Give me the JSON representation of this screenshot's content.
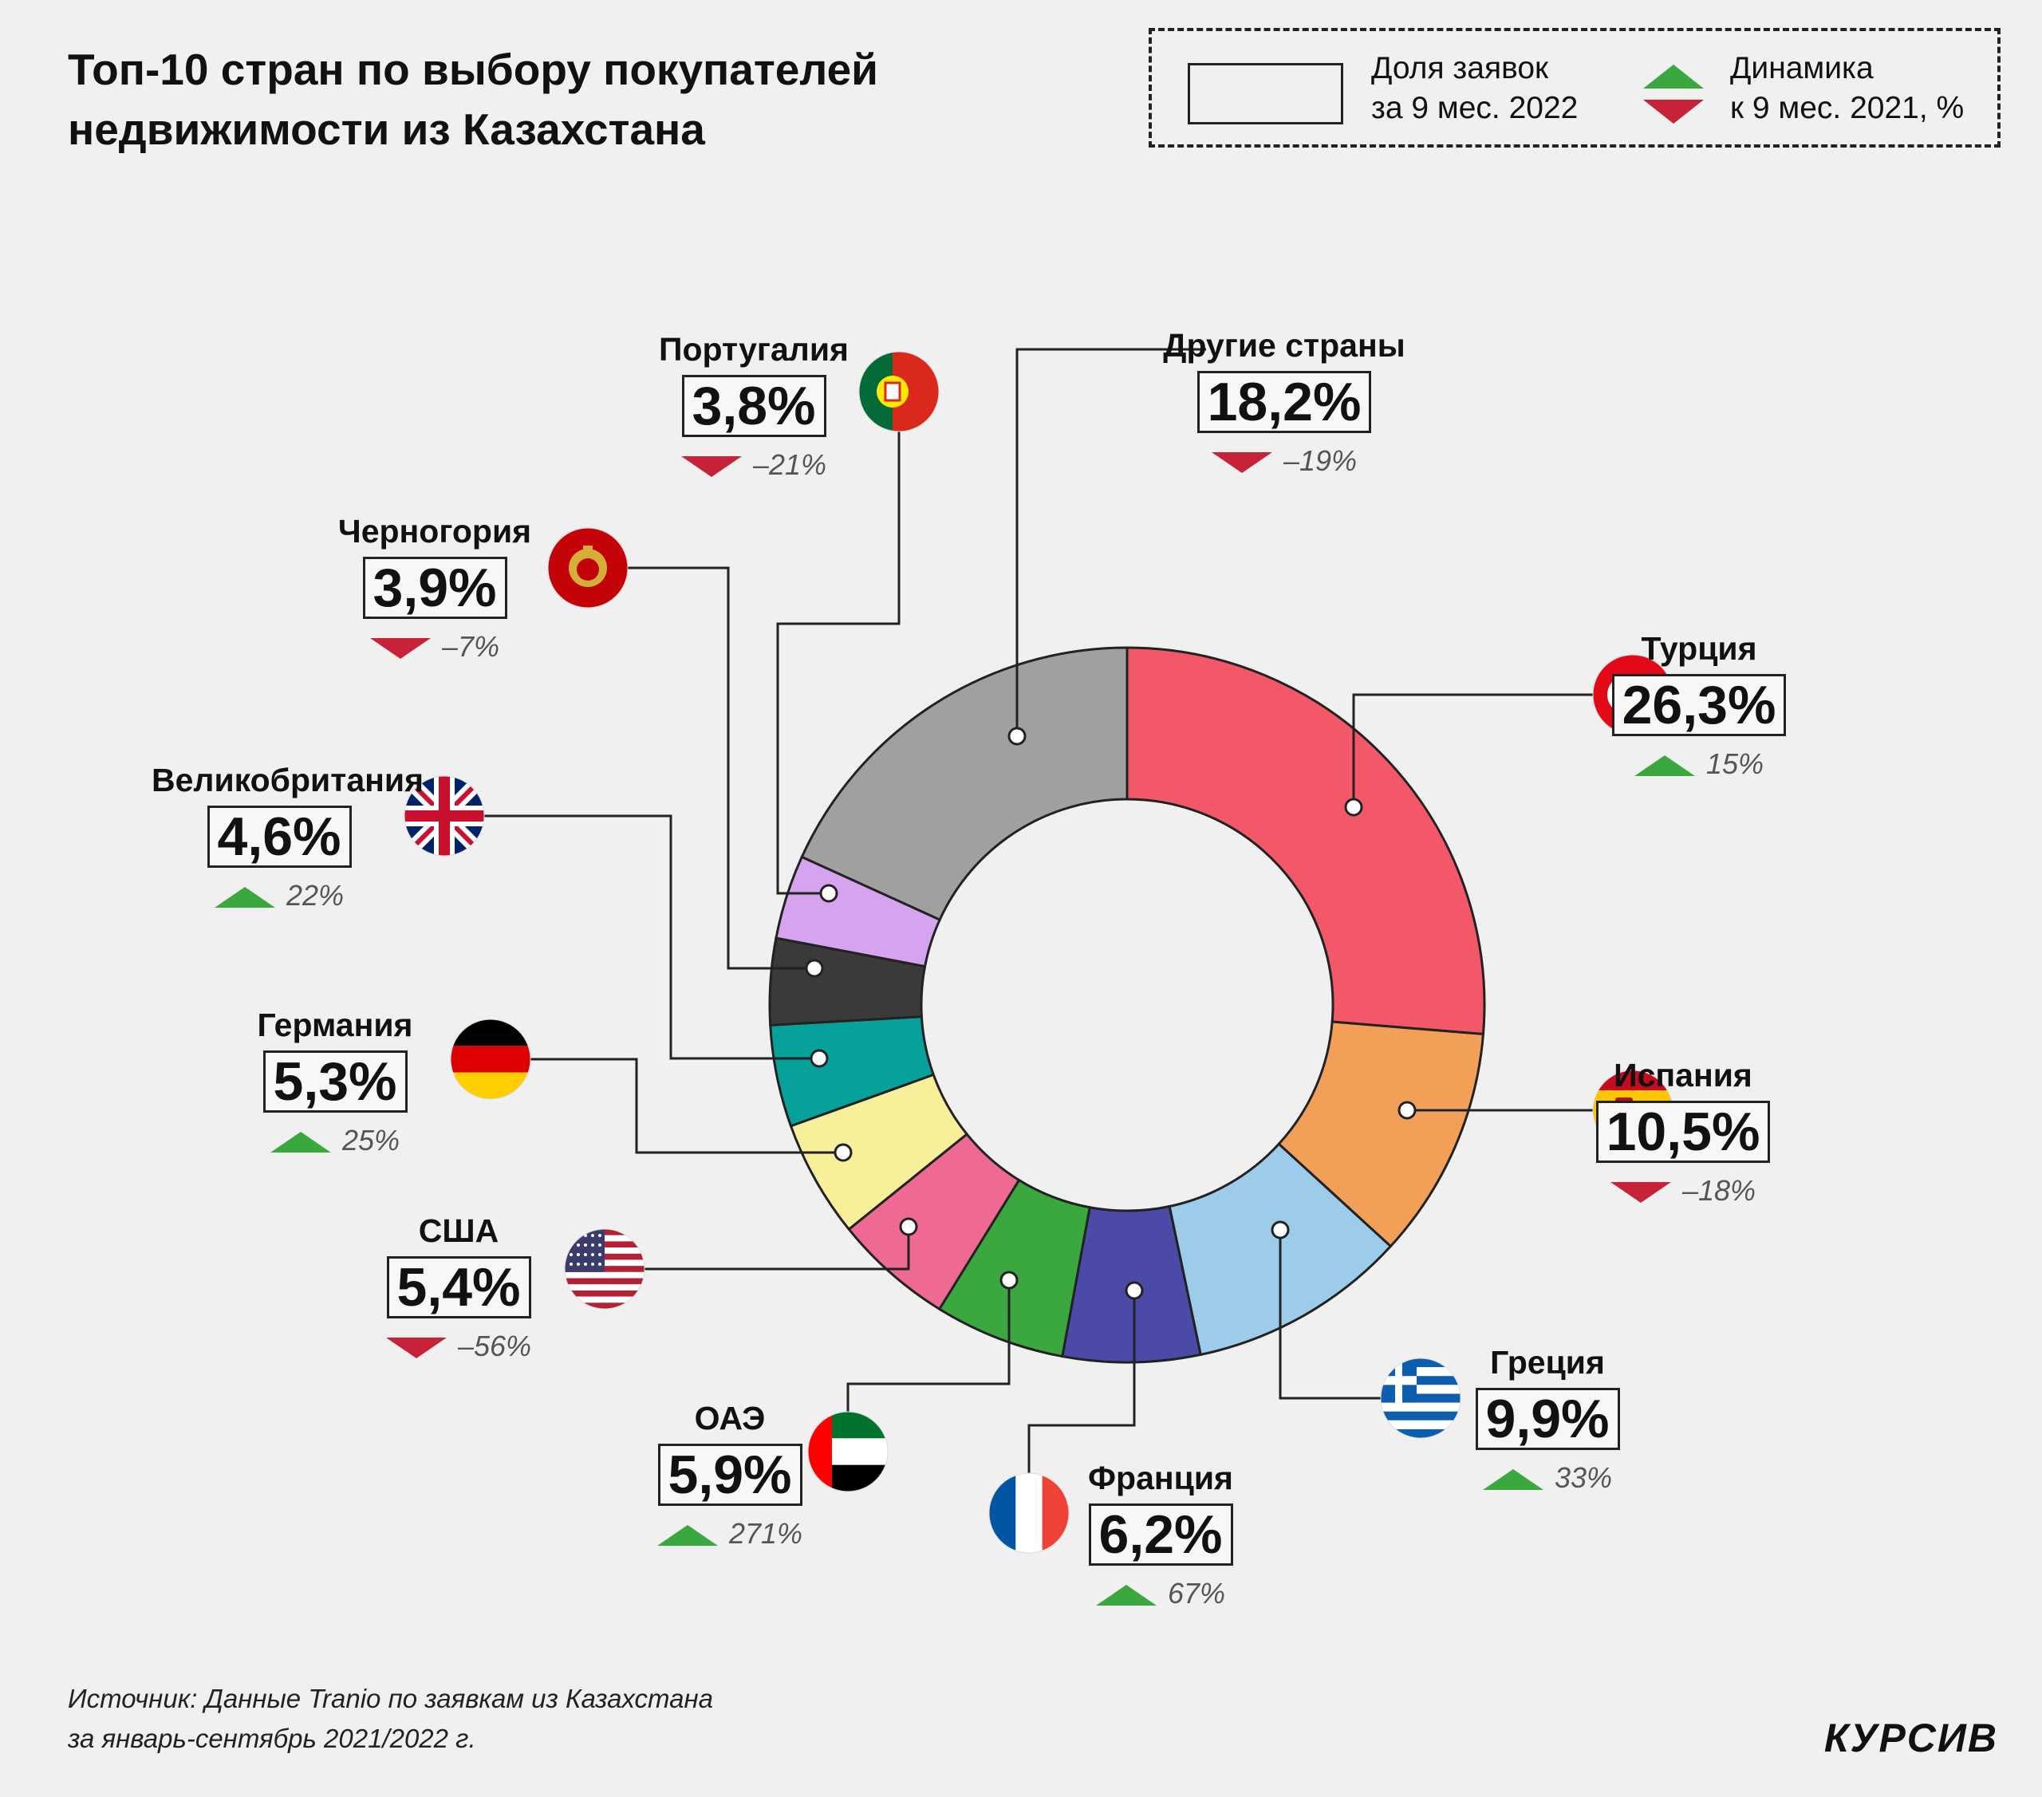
{
  "title": "Топ-10 стран по выбору покупателей недвижимости из Казахстана",
  "legend": {
    "share_label": "Доля заявок\nза 9 мес. 2022",
    "dynamics_label": "Динамика\nк 9 мес. 2021, %"
  },
  "colors": {
    "up": "#3aa83e",
    "down": "#c62238"
  },
  "chart_data": {
    "type": "pie",
    "subtype": "donut",
    "title": "Топ-10 стран по выбору покупателей недвижимости из Казахстана",
    "slices": [
      {
        "label": "Турция",
        "value": 26.3,
        "display": "26,3%",
        "dynamics": "15%",
        "trend": "up",
        "color": "#f35869",
        "flag": "turkey-flag-icon"
      },
      {
        "label": "Испания",
        "value": 10.5,
        "display": "10,5%",
        "dynamics": "–18%",
        "trend": "down",
        "color": "#f2a057",
        "flag": "spain-flag-icon"
      },
      {
        "label": "Греция",
        "value": 9.9,
        "display": "9,9%",
        "dynamics": "33%",
        "trend": "up",
        "color": "#9dcbea",
        "flag": "greece-flag-icon"
      },
      {
        "label": "Франция",
        "value": 6.2,
        "display": "6,2%",
        "dynamics": "67%",
        "trend": "up",
        "color": "#4b4aa6",
        "flag": "france-flag-icon"
      },
      {
        "label": "ОАЭ",
        "value": 5.9,
        "display": "5,9%",
        "dynamics": "271%",
        "trend": "up",
        "color": "#3aa83e",
        "flag": "uae-flag-icon"
      },
      {
        "label": "США",
        "value": 5.4,
        "display": "5,4%",
        "dynamics": "–56%",
        "trend": "down",
        "color": "#ee6a92",
        "flag": "usa-flag-icon"
      },
      {
        "label": "Германия",
        "value": 5.3,
        "display": "5,3%",
        "dynamics": "25%",
        "trend": "up",
        "color": "#f7ef9a",
        "flag": "germany-flag-icon"
      },
      {
        "label": "Великобритания",
        "value": 4.6,
        "display": "4,6%",
        "dynamics": "22%",
        "trend": "up",
        "color": "#06a19b",
        "flag": "uk-flag-icon"
      },
      {
        "label": "Черногория",
        "value": 3.9,
        "display": "3,9%",
        "dynamics": "–7%",
        "trend": "down",
        "color": "#3a3a3a",
        "flag": "montenegro-flag-icon"
      },
      {
        "label": "Португалия",
        "value": 3.8,
        "display": "3,8%",
        "dynamics": "–21%",
        "trend": "down",
        "color": "#d6a3ee",
        "flag": "portugal-flag-icon"
      },
      {
        "label": "Другие страны",
        "value": 18.2,
        "display": "18,2%",
        "dynamics": "–19%",
        "trend": "down",
        "color": "#a0a0a0",
        "flag": ""
      }
    ]
  },
  "source": "Источник: Данные Tranio по заявкам из Казахстана\nза январь-сентябрь 2021/2022 г.",
  "logo": "КУРСИВ"
}
